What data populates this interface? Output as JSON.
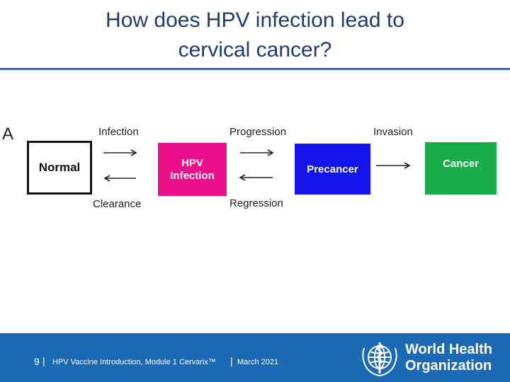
{
  "slide": {
    "title_line1": "How does HPV infection lead to",
    "title_line2": "cervical cancer?",
    "panel_letter": "A"
  },
  "diagram": {
    "nodes": {
      "normal": "Normal",
      "hpv_line1": "HPV",
      "hpv_line2": "Infection",
      "precancer": "Precancer",
      "cancer": "Cancer"
    },
    "edges": {
      "infection": "Infection",
      "clearance": "Clearance",
      "progression": "Progression",
      "regression": "Regression",
      "invasion": "Invasion"
    },
    "colors": {
      "hpv": "#ec0f8c",
      "precancer": "#1414ea",
      "cancer": "#1aab4a"
    }
  },
  "footer": {
    "page_number": "9",
    "separator": "|",
    "course": "HPV Vaccine Introduction, Module 1 Cervarix™",
    "date": "March 2021",
    "org_line1": "World Health",
    "org_line2": "Organization",
    "background": "#1c6ab4"
  }
}
